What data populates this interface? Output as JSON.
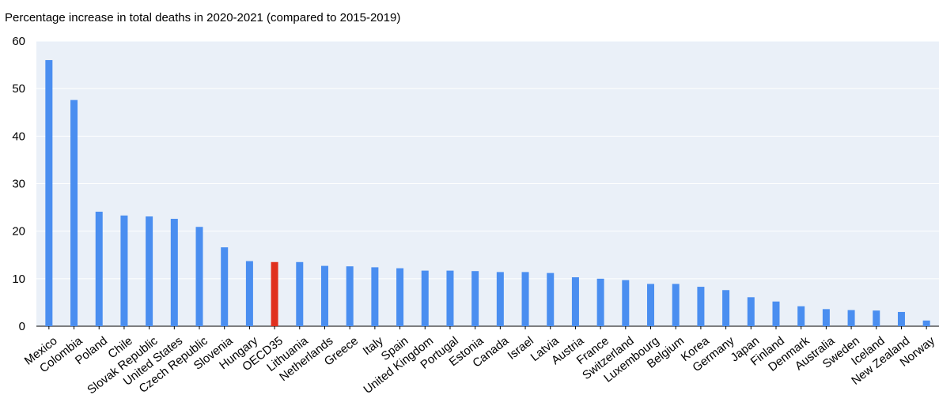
{
  "chart_data": {
    "type": "bar",
    "title": "",
    "ylabel": "Percentage increase in total deaths in 2020-2021 (compared to 2015-2019)",
    "xlabel": "",
    "ylim": [
      0,
      60
    ],
    "yticks": [
      0,
      10,
      20,
      30,
      40,
      50,
      60
    ],
    "grid": true,
    "colors": {
      "bar": "#4a8ef0",
      "highlight": "#e0301e",
      "plot_bg": "#eaf0f8",
      "grid": "#ffffff"
    },
    "highlight_category": "OECD35",
    "categories": [
      "Mexico",
      "Colombia",
      "Poland",
      "Chile",
      "Slovak Republic",
      "United States",
      "Czech Republic",
      "Slovenia",
      "Hungary",
      "OECD35",
      "Lithuania",
      "Netherlands",
      "Greece",
      "Italy",
      "Spain",
      "United Kingdom",
      "Portugal",
      "Estonia",
      "Canada",
      "Israel",
      "Latvia",
      "Austria",
      "France",
      "Switzerland",
      "Luxembourg",
      "Belgium",
      "Korea",
      "Germany",
      "Japan",
      "Finland",
      "Denmark",
      "Australia",
      "Sweden",
      "Iceland",
      "New Zealand",
      "Norway"
    ],
    "values": [
      56.0,
      47.6,
      24.1,
      23.3,
      23.1,
      22.6,
      20.9,
      16.6,
      13.7,
      13.5,
      13.5,
      12.7,
      12.6,
      12.4,
      12.2,
      11.7,
      11.7,
      11.6,
      11.4,
      11.4,
      11.2,
      10.3,
      10.0,
      9.7,
      8.9,
      8.9,
      8.3,
      7.6,
      6.1,
      5.2,
      4.2,
      3.6,
      3.4,
      3.3,
      3.0,
      1.2
    ]
  }
}
